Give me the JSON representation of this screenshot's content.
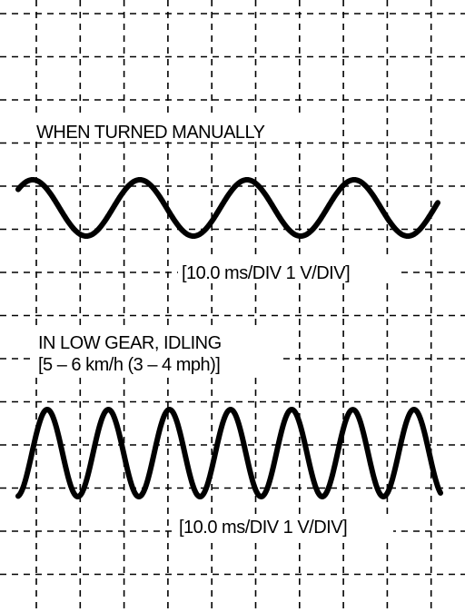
{
  "panels": [
    {
      "title": "WHEN TURNED MANUALLY",
      "scale": "[10.0 ms/DIV 1 V/DIV]"
    },
    {
      "title": "IN LOW GEAR, IDLING",
      "subtitle": "[5 – 6 km/h (3 – 4 mph)]",
      "scale": "[10.0 ms/DIV 1 V/DIV]"
    }
  ]
}
